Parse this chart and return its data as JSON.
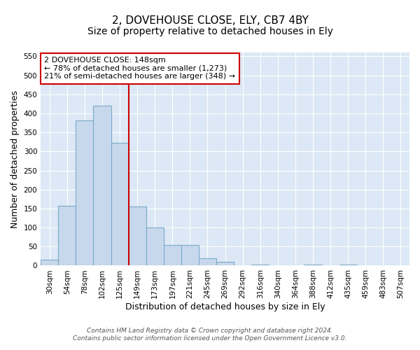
{
  "title1": "2, DOVEHOUSE CLOSE, ELY, CB7 4BY",
  "title2": "Size of property relative to detached houses in Ely",
  "xlabel": "Distribution of detached houses by size in Ely",
  "ylabel": "Number of detached properties",
  "categories": [
    "30sqm",
    "54sqm",
    "78sqm",
    "102sqm",
    "125sqm",
    "149sqm",
    "173sqm",
    "197sqm",
    "221sqm",
    "245sqm",
    "269sqm",
    "292sqm",
    "316sqm",
    "340sqm",
    "364sqm",
    "388sqm",
    "412sqm",
    "435sqm",
    "459sqm",
    "483sqm",
    "507sqm"
  ],
  "values": [
    15,
    157,
    382,
    420,
    323,
    155,
    100,
    55,
    55,
    20,
    10,
    0,
    2,
    0,
    0,
    2,
    0,
    2,
    0,
    1,
    1
  ],
  "bar_color": "#c8d8ec",
  "bar_edge_color": "#7aaac8",
  "annotation_text": "2 DOVEHOUSE CLOSE: 148sqm\n← 78% of detached houses are smaller (1,273)\n21% of semi-detached houses are larger (348) →",
  "annotation_box_color": "#ffffff",
  "annotation_box_edge": "#cc0000",
  "vline_color": "#cc0000",
  "footer1": "Contains HM Land Registry data © Crown copyright and database right 2024.",
  "footer2": "Contains public sector information licensed under the Open Government Licence v3.0.",
  "ylim": [
    0,
    560
  ],
  "yticks": [
    0,
    50,
    100,
    150,
    200,
    250,
    300,
    350,
    400,
    450,
    500,
    550
  ],
  "background_color": "#ffffff",
  "plot_bg_color": "#dce8f5",
  "grid_color": "#ffffff",
  "title_fontsize": 11,
  "subtitle_fontsize": 10,
  "tick_fontsize": 7.5,
  "label_fontsize": 9,
  "footer_fontsize": 6.5,
  "annot_fontsize": 8
}
